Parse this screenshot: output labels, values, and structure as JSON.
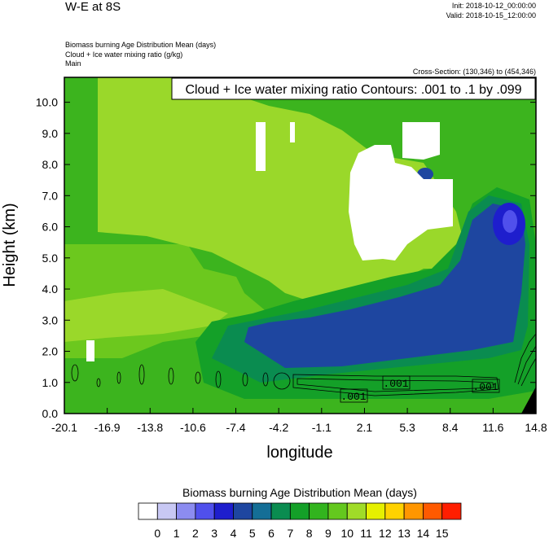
{
  "header": {
    "title": "W-E at 8S",
    "init": "Init: 2018-10-12_00:00:00",
    "valid": "Valid: 2018-10-15_12:00:00",
    "field1": "Biomass burning Age Distribution Mean    (days)",
    "field2": "Cloud + Ice water mixing ratio    (g/kg)",
    "field3": "Main",
    "cross_section": "Cross-Section: (130,346) to (454,346)"
  },
  "chart_data": {
    "type": "heatmap",
    "title": "W-E at 8S",
    "contour_label": "Cloud + Ice water mixing ratio Contours: .001 to .1 by .099",
    "xlabel": "longitude",
    "ylabel": "Height (km)",
    "x_ticks": [
      "-20.1",
      "-16.9",
      "-13.8",
      "-10.6",
      "-7.4",
      "-4.2",
      "-1.1",
      "2.1",
      "5.3",
      "8.4",
      "11.6",
      "14.8"
    ],
    "y_ticks": [
      "0.0",
      "1.0",
      "2.0",
      "3.0",
      "4.0",
      "5.0",
      "6.0",
      "7.0",
      "8.0",
      "9.0",
      "10.0"
    ],
    "xlim": [
      -20.1,
      14.8
    ],
    "ylim": [
      0,
      10.8
    ],
    "grid": false,
    "colorbar_title": "Biomass burning Age Distribution Mean  (days)",
    "colorbar_labels": [
      "0",
      "1",
      "2",
      "3",
      "4",
      "5",
      "6",
      "7",
      "8",
      "9",
      "10",
      "11",
      "12",
      "13",
      "14",
      "15"
    ],
    "colorbar_colors": [
      "#ffffff",
      "#c8c8f4",
      "#8c8cf0",
      "#5050ec",
      "#1e1ecd",
      "#1e46a0",
      "#146e96",
      "#0a8c50",
      "#14a028",
      "#32b41e",
      "#64c81e",
      "#a0dc28",
      "#e6f000",
      "#ffd200",
      "#ff9600",
      "#ff5a00",
      "#ff1e00"
    ],
    "contour_labels": [
      ".001",
      ".001",
      ".001"
    ],
    "shaded_regions": [
      {
        "description_value_days": 8,
        "x_range": [
          -20.1,
          14.8
        ],
        "y_range": [
          0,
          10.8
        ]
      },
      {
        "description_value_days": 9,
        "x_range": [
          -20.1,
          -2.0
        ],
        "y_range": [
          1.8,
          3.2
        ]
      },
      {
        "description_value_days": 10,
        "x_range": [
          -11.5,
          1.5
        ],
        "y_range": [
          3.5,
          10.2
        ]
      },
      {
        "description_value_days": 5,
        "x_range": [
          -5.5,
          13.5
        ],
        "y_range": [
          0.9,
          6.5
        ]
      },
      {
        "description_value_days": 3,
        "x_range": [
          12.0,
          13.5
        ],
        "y_range": [
          5.3,
          6.4
        ]
      },
      {
        "description_value_days": 0,
        "x_range": [
          0.5,
          10.0
        ],
        "y_range": [
          5.0,
          9.0
        ]
      }
    ]
  },
  "colors": {
    "white": "#ffffff",
    "lime": "#9ad82a",
    "green_light": "#6cc81e",
    "green": "#3cb41e",
    "green_mid": "#14a028",
    "teal": "#0a8c50",
    "blue_dark": "#1e46a0",
    "blue": "#1e1ecd",
    "blue_light": "#5050ec"
  }
}
